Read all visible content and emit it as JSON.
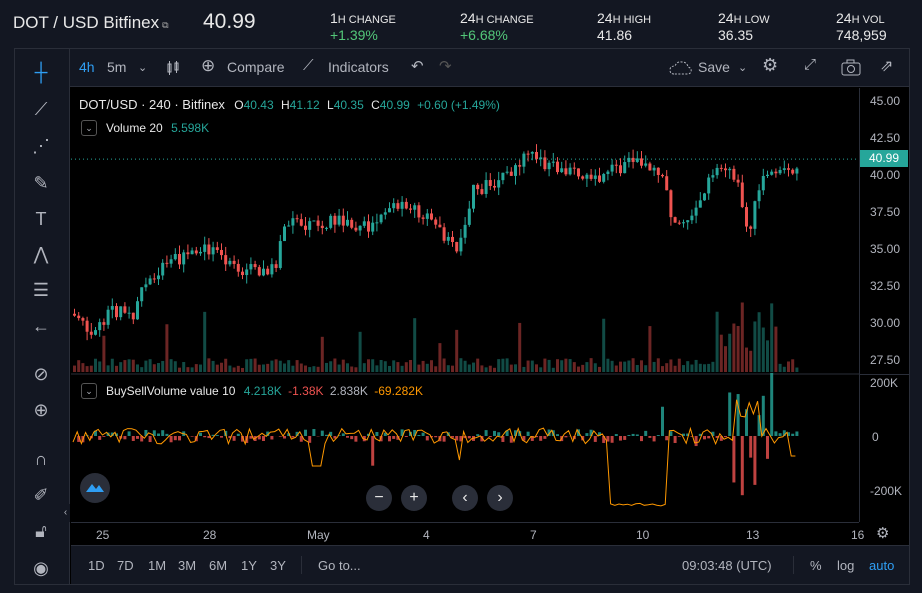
{
  "ticker": {
    "pair": "DOT / USD Bitfinex",
    "price": "40.99",
    "stats": [
      {
        "label_big": "1",
        "label_small": "H CHANGE",
        "value": "+1.39%",
        "positive": true
      },
      {
        "label_big": "24",
        "label_small": "H CHANGE",
        "value": "+6.68%",
        "positive": true
      },
      {
        "label_big": "24",
        "label_small": "H HIGH",
        "value": "41.86",
        "positive": false
      },
      {
        "label_big": "24",
        "label_small": "H LOW",
        "value": "36.35",
        "positive": false
      },
      {
        "label_big": "24",
        "label_small": "H VOL",
        "value": "748,959",
        "positive": false
      }
    ]
  },
  "toolbar": {
    "interval_4h": "4h",
    "interval_5m": "5m",
    "compare": "Compare",
    "indicators": "Indicators",
    "save": "Save"
  },
  "legend": {
    "symbol": "DOT/USD · 240 · Bitfinex",
    "o_label": "O",
    "o": "40.43",
    "h_label": "H",
    "h": "41.12",
    "l_label": "L",
    "l": "40.35",
    "c_label": "C",
    "c": "40.99",
    "change": "+0.60 (+1.49%)",
    "volume_name": "Volume 20",
    "volume_value": "5.598K",
    "bsv_name": "BuySellVolume value 10",
    "bsv_v1": "4.218K",
    "bsv_v2": "-1.38K",
    "bsv_v3": "2.838K",
    "bsv_v4": "-69.282K"
  },
  "price_axis": [
    "45.00",
    "42.50",
    "40.00",
    "37.50",
    "35.00",
    "32.50",
    "30.00",
    "27.50"
  ],
  "price_badge": "40.99",
  "osc_axis": [
    "200K",
    "0",
    "-200K"
  ],
  "time_axis": [
    "25",
    "28",
    "May",
    "4",
    "7",
    "10",
    "13",
    "16"
  ],
  "bottom": {
    "ranges": [
      "1D",
      "7D",
      "1M",
      "3M",
      "6M",
      "1Y",
      "3Y"
    ],
    "goto": "Go to...",
    "clock": "09:03:48 (UTC)",
    "percent": "%",
    "log": "log",
    "auto": "auto"
  },
  "colors": {
    "up": "#26a69a",
    "down": "#ef5350",
    "accent": "#2f9ef3",
    "osc_line": "#ff9800"
  },
  "icons": [
    "crosshair-icon",
    "trend-line-icon",
    "fib-icon",
    "brush-icon",
    "text-icon",
    "pattern-icon",
    "measure-icon",
    "back-arrow-icon",
    "ruler-icon",
    "zoom-icon",
    "magnet-icon",
    "lock-draw-icon",
    "lock-icon",
    "eye-icon"
  ]
}
